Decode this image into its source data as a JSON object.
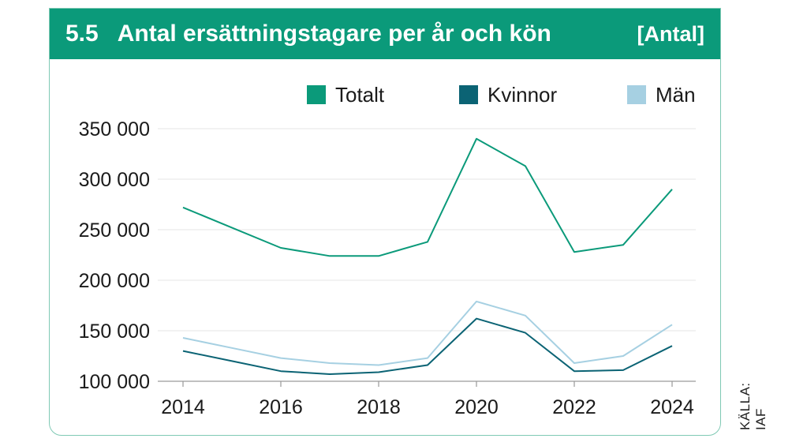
{
  "header": {
    "number": "5.5",
    "title": "Antal ersättningstagare per år och kön",
    "unit": "[Antal]"
  },
  "source": "KÄLLA: IAF",
  "colors": {
    "header_bg": "#0b9a7a",
    "totalt": "#0b9a7a",
    "kvinnor": "#0b6374",
    "man": "#a6d0e2"
  },
  "chart_data": {
    "type": "line",
    "x": [
      2014,
      2015,
      2016,
      2017,
      2018,
      2019,
      2020,
      2021,
      2022,
      2023,
      2024
    ],
    "x_ticks": [
      "2014",
      "2016",
      "2018",
      "2020",
      "2022",
      "2024"
    ],
    "y_ticks": [
      "100 000",
      "150 000",
      "200 000",
      "250 000",
      "300 000",
      "350 000"
    ],
    "ylim": [
      100000,
      350000
    ],
    "grid": true,
    "legend_position": "top-right",
    "series": [
      {
        "name": "Totalt",
        "color": "#0b9a7a",
        "values": [
          272000,
          252000,
          232000,
          224000,
          224000,
          238000,
          340000,
          313000,
          228000,
          235000,
          290000
        ]
      },
      {
        "name": "Kvinnor",
        "color": "#0b6374",
        "values": [
          130000,
          120000,
          110000,
          107000,
          109000,
          116000,
          162000,
          148000,
          110000,
          111000,
          135000
        ]
      },
      {
        "name": "Män",
        "color": "#a6d0e2",
        "values": [
          143000,
          133000,
          123000,
          118000,
          116000,
          123000,
          179000,
          165000,
          118000,
          125000,
          156000
        ]
      }
    ]
  }
}
